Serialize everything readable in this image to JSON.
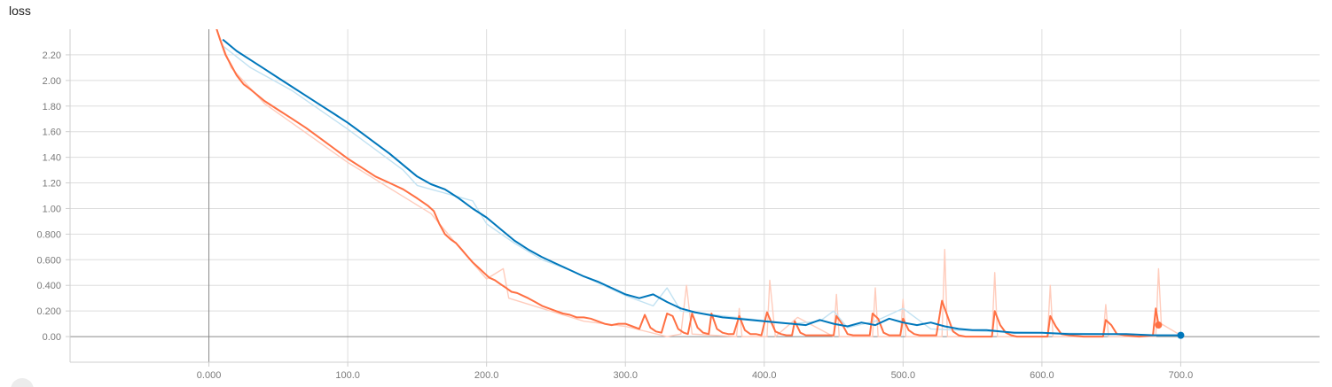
{
  "title": "loss",
  "chart_data": {
    "type": "line",
    "title": "loss",
    "xlabel": "",
    "ylabel": "",
    "xlim": [
      -100,
      800
    ],
    "ylim": [
      -0.2,
      2.4
    ],
    "x_ticks": [
      0,
      100,
      200,
      300,
      400,
      500,
      600,
      700
    ],
    "x_tick_labels": [
      "0.000",
      "100.0",
      "200.0",
      "300.0",
      "400.0",
      "500.0",
      "600.0",
      "700.0"
    ],
    "y_ticks": [
      0,
      0.2,
      0.4,
      0.6,
      0.8,
      1.0,
      1.2,
      1.4,
      1.6,
      1.8,
      2.0,
      2.2
    ],
    "y_tick_labels": [
      "0.00",
      "0.200",
      "0.400",
      "0.600",
      "0.800",
      "1.00",
      "1.20",
      "1.40",
      "1.60",
      "1.80",
      "2.00",
      "2.20"
    ],
    "grid": true,
    "series": [
      {
        "color": "#ff7043",
        "raw_color": "#ffccbc",
        "x": [
          5,
          8,
          12,
          16,
          20,
          25,
          30,
          40,
          50,
          60,
          70,
          80,
          90,
          100,
          110,
          120,
          130,
          140,
          150,
          158,
          162,
          166,
          170,
          174,
          178,
          182,
          186,
          190,
          194,
          198,
          202,
          206,
          210,
          214,
          218,
          222,
          226,
          230,
          235,
          240,
          245,
          250,
          255,
          260,
          265,
          270,
          275,
          280,
          285,
          290,
          295,
          300,
          305,
          310,
          314,
          318,
          322,
          326,
          330,
          334,
          338,
          342,
          345,
          348,
          352,
          356,
          360,
          362,
          366,
          370,
          374,
          378,
          382,
          386,
          390,
          394,
          398,
          402,
          404,
          408,
          412,
          416,
          420,
          422,
          426,
          430,
          434,
          438,
          442,
          446,
          450,
          452,
          456,
          460,
          464,
          468,
          472,
          476,
          478,
          482,
          486,
          490,
          494,
          498,
          500,
          504,
          508,
          512,
          516,
          520,
          524,
          528,
          532,
          536,
          540,
          545,
          550,
          555,
          560,
          564,
          566,
          570,
          574,
          578,
          582,
          590,
          600,
          604,
          606,
          610,
          614,
          620,
          630,
          640,
          644,
          646,
          650,
          654,
          660,
          670,
          680,
          682,
          684
        ],
        "y": [
          2.42,
          2.32,
          2.2,
          2.12,
          2.04,
          1.97,
          1.93,
          1.84,
          1.77,
          1.7,
          1.63,
          1.55,
          1.47,
          1.39,
          1.32,
          1.25,
          1.2,
          1.15,
          1.08,
          1.02,
          0.98,
          0.88,
          0.8,
          0.76,
          0.73,
          0.68,
          0.63,
          0.58,
          0.54,
          0.5,
          0.46,
          0.44,
          0.41,
          0.38,
          0.35,
          0.34,
          0.32,
          0.3,
          0.27,
          0.24,
          0.22,
          0.2,
          0.18,
          0.17,
          0.15,
          0.15,
          0.14,
          0.12,
          0.1,
          0.09,
          0.1,
          0.1,
          0.08,
          0.06,
          0.17,
          0.07,
          0.04,
          0.03,
          0.18,
          0.16,
          0.06,
          0.03,
          0.02,
          0.18,
          0.07,
          0.03,
          0.02,
          0.18,
          0.06,
          0.03,
          0.02,
          0.02,
          0.16,
          0.05,
          0.02,
          0.02,
          0.01,
          0.19,
          0.14,
          0.04,
          0.02,
          0.01,
          0.01,
          0.12,
          0.03,
          0.01,
          0.01,
          0.01,
          0.01,
          0.01,
          0.01,
          0.16,
          0.1,
          0.02,
          0.01,
          0.01,
          0.01,
          0.01,
          0.18,
          0.14,
          0.03,
          0.01,
          0.01,
          0.01,
          0.14,
          0.05,
          0.02,
          0.01,
          0.01,
          0.01,
          0.01,
          0.28,
          0.16,
          0.04,
          0.01,
          0.0,
          0.0,
          0.0,
          0.0,
          0.0,
          0.2,
          0.09,
          0.03,
          0.01,
          0.0,
          0.0,
          0.0,
          0.0,
          0.16,
          0.08,
          0.02,
          0.01,
          0.0,
          0.0,
          0.0,
          0.13,
          0.09,
          0.02,
          0.01,
          0.0,
          0.01,
          0.22,
          0.09
        ]
      },
      {
        "color": "#0077bb",
        "raw_color": "#c2e2f2",
        "x": [
          10,
          20,
          30,
          40,
          50,
          60,
          70,
          80,
          90,
          100,
          110,
          120,
          130,
          140,
          150,
          160,
          170,
          180,
          190,
          200,
          210,
          220,
          230,
          240,
          250,
          260,
          270,
          280,
          290,
          300,
          310,
          320,
          330,
          340,
          350,
          360,
          370,
          380,
          390,
          400,
          410,
          420,
          430,
          440,
          450,
          460,
          470,
          480,
          490,
          500,
          510,
          520,
          530,
          540,
          550,
          560,
          570,
          580,
          590,
          600,
          620,
          640,
          660,
          680,
          700
        ],
        "y": [
          2.32,
          2.23,
          2.16,
          2.09,
          2.02,
          1.95,
          1.88,
          1.81,
          1.74,
          1.67,
          1.59,
          1.51,
          1.43,
          1.34,
          1.25,
          1.19,
          1.15,
          1.08,
          1.0,
          0.93,
          0.84,
          0.75,
          0.68,
          0.62,
          0.57,
          0.52,
          0.47,
          0.43,
          0.38,
          0.33,
          0.3,
          0.33,
          0.27,
          0.22,
          0.19,
          0.17,
          0.15,
          0.14,
          0.13,
          0.12,
          0.11,
          0.1,
          0.09,
          0.13,
          0.1,
          0.08,
          0.11,
          0.09,
          0.14,
          0.11,
          0.09,
          0.11,
          0.08,
          0.06,
          0.05,
          0.05,
          0.04,
          0.03,
          0.03,
          0.03,
          0.02,
          0.02,
          0.02,
          0.01,
          0.01
        ]
      }
    ],
    "raw_series": [
      {
        "color": "#ffccbc",
        "x": [
          5,
          16,
          40,
          100,
          160,
          180,
          200,
          212,
          216,
          240,
          270,
          300,
          330,
          340,
          344,
          348,
          380,
          382,
          384,
          402,
          404,
          408,
          424,
          450,
          452,
          454,
          478,
          480,
          482,
          498,
          500,
          502,
          528,
          530,
          532,
          564,
          566,
          568,
          604,
          606,
          608,
          644,
          646,
          648,
          682,
          684,
          686,
          700
        ],
        "y": [
          2.42,
          2.1,
          1.82,
          1.36,
          0.96,
          0.7,
          0.45,
          0.53,
          0.3,
          0.22,
          0.12,
          0.08,
          0.0,
          0.02,
          0.4,
          0.02,
          0.0,
          0.22,
          0.0,
          0.0,
          0.44,
          0.0,
          0.15,
          0.0,
          0.33,
          0.0,
          0.0,
          0.38,
          0.0,
          0.0,
          0.29,
          0.0,
          0.0,
          0.68,
          0.0,
          0.0,
          0.5,
          0.0,
          0.0,
          0.4,
          0.0,
          0.0,
          0.25,
          0.0,
          0.0,
          0.53,
          0.1,
          0.01
        ]
      },
      {
        "color": "#c2e2f2",
        "x": [
          10,
          30,
          60,
          100,
          140,
          150,
          170,
          190,
          200,
          220,
          240,
          260,
          280,
          300,
          320,
          330,
          340,
          380,
          420,
          440,
          450,
          460,
          480,
          500,
          520,
          560,
          600,
          650,
          700
        ],
        "y": [
          2.27,
          2.1,
          1.92,
          1.62,
          1.3,
          1.18,
          1.12,
          1.06,
          0.88,
          0.73,
          0.6,
          0.52,
          0.42,
          0.32,
          0.24,
          0.38,
          0.2,
          0.15,
          0.1,
          0.12,
          0.2,
          0.07,
          0.12,
          0.22,
          0.06,
          0.04,
          0.03,
          0.02,
          0.01
        ]
      }
    ],
    "end_markers": [
      {
        "x": 684,
        "y": 0.09,
        "color": "#ff7043"
      },
      {
        "x": 700,
        "y": 0.01,
        "color": "#0077bb"
      }
    ]
  }
}
